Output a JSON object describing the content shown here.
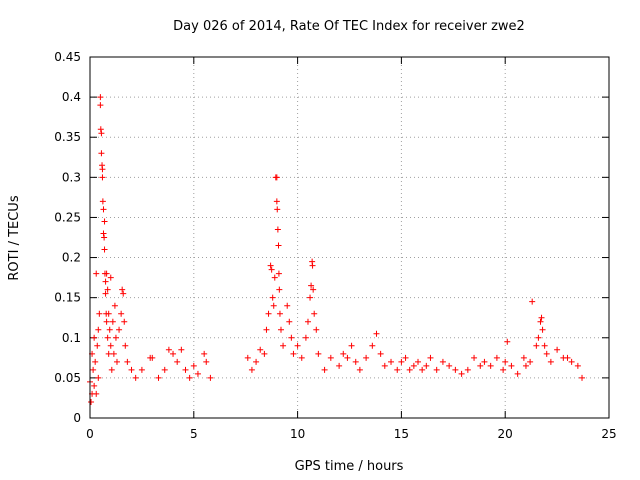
{
  "chart_data": {
    "type": "scatter",
    "title": "Day 026 of 2014, Rate Of TEC Index for receiver zwe2",
    "xlabel": "GPS time / hours",
    "ylabel": "ROTI / TECUs",
    "xlim": [
      0,
      25
    ],
    "ylim": [
      0,
      0.45
    ],
    "grid": true,
    "marker": "+",
    "xticks": [
      0,
      5,
      10,
      15,
      20,
      25
    ],
    "xtick_labels": [
      "0",
      "5",
      "10",
      "15",
      "20",
      "25"
    ],
    "yticks": [
      0,
      0.05,
      0.1,
      0.15,
      0.2,
      0.25,
      0.3,
      0.35,
      0.4,
      0.45
    ],
    "ytick_labels": [
      "0",
      "0.05",
      "0.1",
      "0.15",
      "0.2",
      "0.25",
      "0.3",
      "0.35",
      "0.4",
      "0.45"
    ],
    "series": [
      {
        "name": "ROTI",
        "color": "#ff0000",
        "points": [
          [
            0.0,
            0.045
          ],
          [
            0.05,
            0.02
          ],
          [
            0.1,
            0.08
          ],
          [
            0.1,
            0.03
          ],
          [
            0.15,
            0.06
          ],
          [
            0.2,
            0.1
          ],
          [
            0.2,
            0.04
          ],
          [
            0.25,
            0.07
          ],
          [
            0.3,
            0.18
          ],
          [
            0.3,
            0.03
          ],
          [
            0.35,
            0.09
          ],
          [
            0.4,
            0.11
          ],
          [
            0.4,
            0.05
          ],
          [
            0.45,
            0.13
          ],
          [
            0.5,
            0.4
          ],
          [
            0.5,
            0.39
          ],
          [
            0.52,
            0.36
          ],
          [
            0.55,
            0.355
          ],
          [
            0.55,
            0.33
          ],
          [
            0.58,
            0.315
          ],
          [
            0.6,
            0.31
          ],
          [
            0.6,
            0.3
          ],
          [
            0.62,
            0.27
          ],
          [
            0.65,
            0.26
          ],
          [
            0.65,
            0.23
          ],
          [
            0.68,
            0.225
          ],
          [
            0.7,
            0.245
          ],
          [
            0.7,
            0.21
          ],
          [
            0.72,
            0.18
          ],
          [
            0.75,
            0.17
          ],
          [
            0.75,
            0.155
          ],
          [
            0.78,
            0.13
          ],
          [
            0.8,
            0.18
          ],
          [
            0.8,
            0.12
          ],
          [
            0.85,
            0.16
          ],
          [
            0.85,
            0.1
          ],
          [
            0.9,
            0.13
          ],
          [
            0.9,
            0.08
          ],
          [
            0.95,
            0.11
          ],
          [
            1.0,
            0.175
          ],
          [
            1.0,
            0.09
          ],
          [
            1.05,
            0.06
          ],
          [
            1.1,
            0.12
          ],
          [
            1.15,
            0.08
          ],
          [
            1.2,
            0.14
          ],
          [
            1.25,
            0.1
          ],
          [
            1.3,
            0.07
          ],
          [
            1.4,
            0.11
          ],
          [
            1.5,
            0.13
          ],
          [
            1.55,
            0.16
          ],
          [
            1.6,
            0.155
          ],
          [
            1.65,
            0.12
          ],
          [
            1.7,
            0.09
          ],
          [
            1.8,
            0.07
          ],
          [
            2.0,
            0.06
          ],
          [
            2.2,
            0.05
          ],
          [
            2.5,
            0.06
          ],
          [
            2.9,
            0.075
          ],
          [
            3.0,
            0.075
          ],
          [
            3.3,
            0.05
          ],
          [
            3.6,
            0.06
          ],
          [
            3.8,
            0.085
          ],
          [
            4.0,
            0.08
          ],
          [
            4.2,
            0.07
          ],
          [
            4.4,
            0.085
          ],
          [
            4.6,
            0.06
          ],
          [
            4.8,
            0.05
          ],
          [
            5.0,
            0.065
          ],
          [
            5.2,
            0.055
          ],
          [
            5.5,
            0.08
          ],
          [
            5.6,
            0.07
          ],
          [
            5.8,
            0.05
          ],
          [
            7.6,
            0.075
          ],
          [
            7.8,
            0.06
          ],
          [
            8.0,
            0.07
          ],
          [
            8.2,
            0.085
          ],
          [
            8.4,
            0.08
          ],
          [
            8.5,
            0.11
          ],
          [
            8.6,
            0.13
          ],
          [
            8.7,
            0.19
          ],
          [
            8.75,
            0.185
          ],
          [
            8.8,
            0.15
          ],
          [
            8.85,
            0.14
          ],
          [
            8.9,
            0.175
          ],
          [
            8.95,
            0.3
          ],
          [
            9.0,
            0.3
          ],
          [
            9.0,
            0.27
          ],
          [
            9.02,
            0.26
          ],
          [
            9.05,
            0.235
          ],
          [
            9.08,
            0.215
          ],
          [
            9.1,
            0.18
          ],
          [
            9.12,
            0.16
          ],
          [
            9.15,
            0.13
          ],
          [
            9.2,
            0.11
          ],
          [
            9.3,
            0.09
          ],
          [
            9.5,
            0.14
          ],
          [
            9.6,
            0.12
          ],
          [
            9.7,
            0.1
          ],
          [
            9.8,
            0.08
          ],
          [
            10.0,
            0.09
          ],
          [
            10.2,
            0.075
          ],
          [
            10.4,
            0.1
          ],
          [
            10.5,
            0.12
          ],
          [
            10.6,
            0.15
          ],
          [
            10.65,
            0.165
          ],
          [
            10.7,
            0.195
          ],
          [
            10.72,
            0.19
          ],
          [
            10.75,
            0.16
          ],
          [
            10.8,
            0.13
          ],
          [
            10.9,
            0.11
          ],
          [
            11.0,
            0.08
          ],
          [
            11.3,
            0.06
          ],
          [
            11.6,
            0.075
          ],
          [
            12.0,
            0.065
          ],
          [
            12.2,
            0.08
          ],
          [
            12.4,
            0.075
          ],
          [
            12.6,
            0.09
          ],
          [
            12.8,
            0.07
          ],
          [
            13.0,
            0.06
          ],
          [
            13.3,
            0.075
          ],
          [
            13.6,
            0.09
          ],
          [
            13.8,
            0.105
          ],
          [
            14.0,
            0.08
          ],
          [
            14.2,
            0.065
          ],
          [
            14.5,
            0.07
          ],
          [
            14.8,
            0.06
          ],
          [
            15.0,
            0.07
          ],
          [
            15.2,
            0.075
          ],
          [
            15.4,
            0.06
          ],
          [
            15.6,
            0.065
          ],
          [
            15.8,
            0.07
          ],
          [
            16.0,
            0.06
          ],
          [
            16.2,
            0.065
          ],
          [
            16.4,
            0.075
          ],
          [
            16.7,
            0.06
          ],
          [
            17.0,
            0.07
          ],
          [
            17.3,
            0.065
          ],
          [
            17.6,
            0.06
          ],
          [
            17.9,
            0.055
          ],
          [
            18.2,
            0.06
          ],
          [
            18.5,
            0.075
          ],
          [
            18.8,
            0.065
          ],
          [
            19.0,
            0.07
          ],
          [
            19.3,
            0.065
          ],
          [
            19.6,
            0.075
          ],
          [
            19.9,
            0.06
          ],
          [
            20.0,
            0.07
          ],
          [
            20.1,
            0.095
          ],
          [
            20.3,
            0.065
          ],
          [
            20.6,
            0.055
          ],
          [
            20.9,
            0.075
          ],
          [
            21.0,
            0.065
          ],
          [
            21.2,
            0.07
          ],
          [
            21.3,
            0.145
          ],
          [
            21.5,
            0.09
          ],
          [
            21.6,
            0.1
          ],
          [
            21.7,
            0.12
          ],
          [
            21.75,
            0.125
          ],
          [
            21.8,
            0.11
          ],
          [
            21.9,
            0.09
          ],
          [
            22.0,
            0.08
          ],
          [
            22.2,
            0.07
          ],
          [
            22.5,
            0.085
          ],
          [
            22.8,
            0.075
          ],
          [
            23.0,
            0.075
          ],
          [
            23.2,
            0.07
          ],
          [
            23.5,
            0.065
          ],
          [
            23.7,
            0.05
          ]
        ]
      }
    ]
  }
}
